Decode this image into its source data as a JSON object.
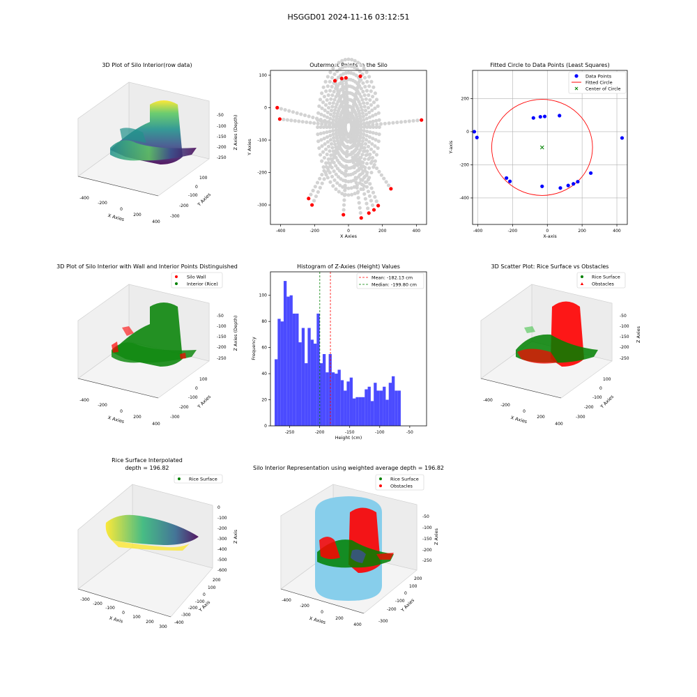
{
  "figure": {
    "suptitle": "HSGGD01 2024-11-16 03:12:51"
  },
  "panels": {
    "p1": {
      "title": "3D Plot of Silo Interior(row data)",
      "xlabel": "X Axies",
      "ylabel": "Y Axies",
      "zlabel": "Z Axies (Depth)",
      "xticks": [
        "-400",
        "-200",
        "0",
        "200",
        "400"
      ],
      "yticks": [
        "100",
        "0",
        "-100",
        "-200",
        "-300"
      ],
      "zticks": [
        "-50",
        "-100",
        "-150",
        "-200",
        "-250"
      ]
    },
    "p4": {
      "title": "3D Plot of Silo Interior with Wall and Interior Points Distinguished",
      "xlabel": "X Axies",
      "ylabel": "Y Axies",
      "zlabel": "Z Axies (Depth)",
      "xticks": [
        "-400",
        "-200",
        "0",
        "200",
        "400"
      ],
      "yticks": [
        "100",
        "0",
        "-100",
        "-200",
        "-300"
      ],
      "zticks": [
        "-50",
        "-100",
        "-150",
        "-200",
        "-250"
      ],
      "legend": [
        "Silo Wall",
        "Interior (Rice)"
      ]
    },
    "p6": {
      "title": "3D Scatter Plot: Rice Surface vs Obstacles",
      "xlabel": "X Axies",
      "ylabel": "Y Axies",
      "zlabel": "Z Axies",
      "xticks": [
        "-400",
        "-200",
        "0",
        "200",
        "400"
      ],
      "yticks": [
        "100",
        "0",
        "-100",
        "-200",
        "-300"
      ],
      "zticks": [
        "-50",
        "-100",
        "-150",
        "-200",
        "-250"
      ],
      "legend": [
        "Rice Surface",
        "Obstacles"
      ]
    },
    "p7": {
      "title": "Rice Surface Interpolated",
      "subtitle": "depth = 196.82",
      "xlabel": "X Axis",
      "ylabel": "Y Axis",
      "zlabel": "Z Axis",
      "xticks": [
        "-300",
        "-200",
        "-100",
        "0",
        "100",
        "200",
        "300"
      ],
      "yticks": [
        "200",
        "100",
        "0",
        "-100",
        "-200",
        "-300",
        "-400"
      ],
      "zticks": [
        "0",
        "-100",
        "-200",
        "-300",
        "-400",
        "-500",
        "-600"
      ],
      "legend": [
        "Rice Surface"
      ]
    },
    "p8": {
      "title": "Silo Interior Representation using weighted average depth = 196.82",
      "xlabel": "X Axies",
      "ylabel": "Y Axies",
      "zlabel": "Z Axies",
      "xticks": [
        "-400",
        "-200",
        "0",
        "200",
        "400"
      ],
      "yticks": [
        "200",
        "100",
        "0",
        "-100",
        "-200",
        "-300"
      ],
      "zticks": [
        "-50",
        "-100",
        "-150",
        "-200",
        "-250"
      ],
      "legend": [
        "Rice Surface",
        "Obstacles"
      ]
    }
  },
  "colors": {
    "blue": "#0000ff",
    "red": "#ff0000",
    "green": "#008000",
    "gray": "#d3d3d3",
    "hist": "#4b4bff",
    "sky": "#87ceeb"
  },
  "chart_data": [
    {
      "type": "scatter",
      "title": "Outermost Points in the Silo",
      "xlabel": "X Axies",
      "ylabel": "Y Axies",
      "xlim": [
        -460,
        460
      ],
      "ylim": [
        -360,
        115
      ],
      "xticks": [
        -400,
        -200,
        0,
        200,
        400
      ],
      "yticks": [
        100,
        0,
        -100,
        -200,
        -300
      ],
      "series": [
        {
          "name": "",
          "x": [
            -420,
            -405,
            -80,
            -40,
            -15,
            70,
            430,
            -235,
            -215,
            -30,
            75,
            120,
            150,
            175,
            250
          ],
          "y": [
            0,
            -35,
            83,
            90,
            92,
            97,
            -38,
            -280,
            -300,
            -330,
            -340,
            -325,
            -315,
            -302,
            -250
          ]
        }
      ]
    },
    {
      "type": "scatter",
      "title": "Fitted Circle to Data Points (Least Squares)",
      "xlabel": "X-axis",
      "ylabel": "Y-axis",
      "xlim": [
        -430,
        460
      ],
      "ylim": [
        -560,
        370
      ],
      "xticks": [
        -400,
        -200,
        0,
        200,
        400
      ],
      "yticks": [
        200,
        0,
        -200,
        -400
      ],
      "grid": true,
      "legend_position": "upper right",
      "series": [
        {
          "name": "Data Points",
          "x": [
            -420,
            -405,
            -80,
            -40,
            -15,
            70,
            430,
            -235,
            -215,
            -30,
            75,
            120,
            150,
            175,
            250
          ],
          "y": [
            0,
            -35,
            83,
            90,
            92,
            97,
            -38,
            -280,
            -300,
            -330,
            -340,
            -325,
            -315,
            -302,
            -250
          ]
        },
        {
          "name": "Fitted Circle",
          "center": [
            -30,
            -95
          ],
          "radius": 290
        },
        {
          "name": "Center of Circle",
          "x": [
            -30
          ],
          "y": [
            -95
          ]
        }
      ]
    },
    {
      "type": "bar",
      "title": "Histogram of Z-Axies (Height) Values",
      "xlabel": "Height (cm)",
      "ylabel": "Frequency",
      "xlim": [
        -282,
        -22
      ],
      "ylim": [
        0,
        118
      ],
      "xticks": [
        -250,
        -200,
        -150,
        -100,
        -50
      ],
      "yticks": [
        0,
        20,
        40,
        60,
        80,
        100
      ],
      "bin_start": -275,
      "bin_width": 5,
      "values": [
        51,
        82,
        80,
        111,
        99,
        100,
        86,
        86,
        64,
        75,
        48,
        75,
        66,
        63,
        86,
        48,
        55,
        41,
        55,
        41,
        40,
        43,
        35,
        27,
        34,
        37,
        21,
        22,
        22,
        22,
        28,
        30,
        19,
        33,
        27,
        27,
        30,
        20,
        33,
        38,
        27,
        27
      ],
      "annotations": [
        {
          "name": "Mean: -182.13 cm",
          "x": -182.13
        },
        {
          "name": "Median: -199.80 cm",
          "x": -199.8
        }
      ],
      "legend_position": "upper right"
    }
  ]
}
